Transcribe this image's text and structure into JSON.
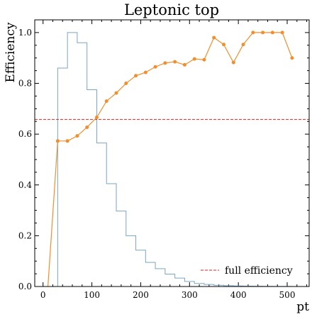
{
  "chart_data": {
    "type": "line",
    "title": "Leptonic top",
    "xlabel": "pt",
    "ylabel": "Efficiency",
    "xlim": [
      -17,
      545
    ],
    "ylim": [
      0,
      1.05
    ],
    "xticks": [
      0,
      100,
      200,
      300,
      400,
      500
    ],
    "yticks": [
      0.0,
      0.2,
      0.4,
      0.6,
      0.8,
      1.0
    ],
    "xtick_labels": [
      "0",
      "100",
      "200",
      "300",
      "400",
      "500"
    ],
    "ytick_labels": [
      "0.0",
      "0.2",
      "0.4",
      "0.6",
      "0.8",
      "1.0"
    ],
    "grid": false,
    "legend_position": "lower-right",
    "histogram": {
      "color": "#7aa6c2",
      "bin_edges": [
        30,
        50,
        70,
        90,
        110,
        130,
        150,
        170,
        190,
        210,
        230,
        250,
        270,
        290,
        310,
        330,
        350,
        370,
        390,
        410,
        430,
        450,
        470,
        490,
        510
      ],
      "values": [
        0.86,
        1.0,
        0.96,
        0.775,
        0.565,
        0.405,
        0.297,
        0.2,
        0.143,
        0.095,
        0.07,
        0.049,
        0.033,
        0.02,
        0.012,
        0.008,
        0.005,
        0.003,
        0.002,
        0.0015,
        0.001,
        0.0008,
        0.0005,
        0.0003
      ]
    },
    "efficiency": {
      "color": "#f28e2b",
      "x": [
        10,
        30,
        50,
        70,
        90,
        110,
        130,
        150,
        170,
        190,
        210,
        230,
        250,
        270,
        290,
        310,
        330,
        350,
        370,
        390,
        410,
        430,
        450,
        470,
        490,
        510
      ],
      "y": [
        0.0,
        0.573,
        0.573,
        0.593,
        0.627,
        0.666,
        0.73,
        0.762,
        0.8,
        0.83,
        0.843,
        0.865,
        0.88,
        0.885,
        0.873,
        0.896,
        0.893,
        0.98,
        0.953,
        0.882,
        0.953,
        1.0,
        1.0,
        1.0,
        1.0,
        0.9
      ]
    },
    "full_efficiency": {
      "value": 0.658,
      "color": "#d62728",
      "label": "full efficiency"
    }
  }
}
